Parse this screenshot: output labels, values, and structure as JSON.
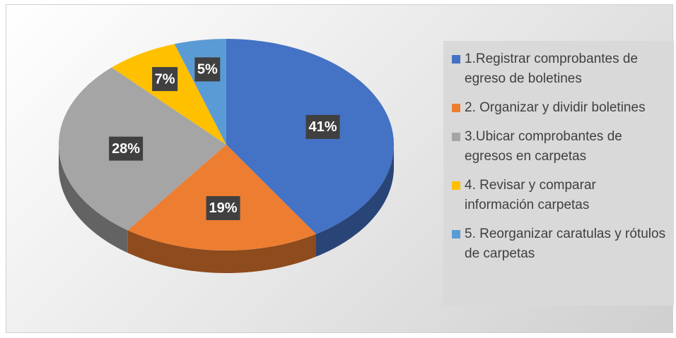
{
  "chart_data": {
    "type": "pie",
    "categories": [
      "1.Registrar comprobantes de egreso de boletines",
      "2. Organizar y dividir boletines",
      "3.Ubicar comprobantes de egresos en carpetas",
      "4. Revisar y comparar información carpetas",
      "5. Reorganizar caratulas y rótulos de carpetas"
    ],
    "values": [
      41,
      19,
      28,
      7,
      5
    ],
    "value_labels": [
      "41%",
      "19%",
      "28%",
      "7%",
      "5%"
    ],
    "colors": [
      "#4472c4",
      "#ed7d31",
      "#a5a5a5",
      "#ffc000",
      "#5b9bd5"
    ],
    "legend": "right"
  }
}
